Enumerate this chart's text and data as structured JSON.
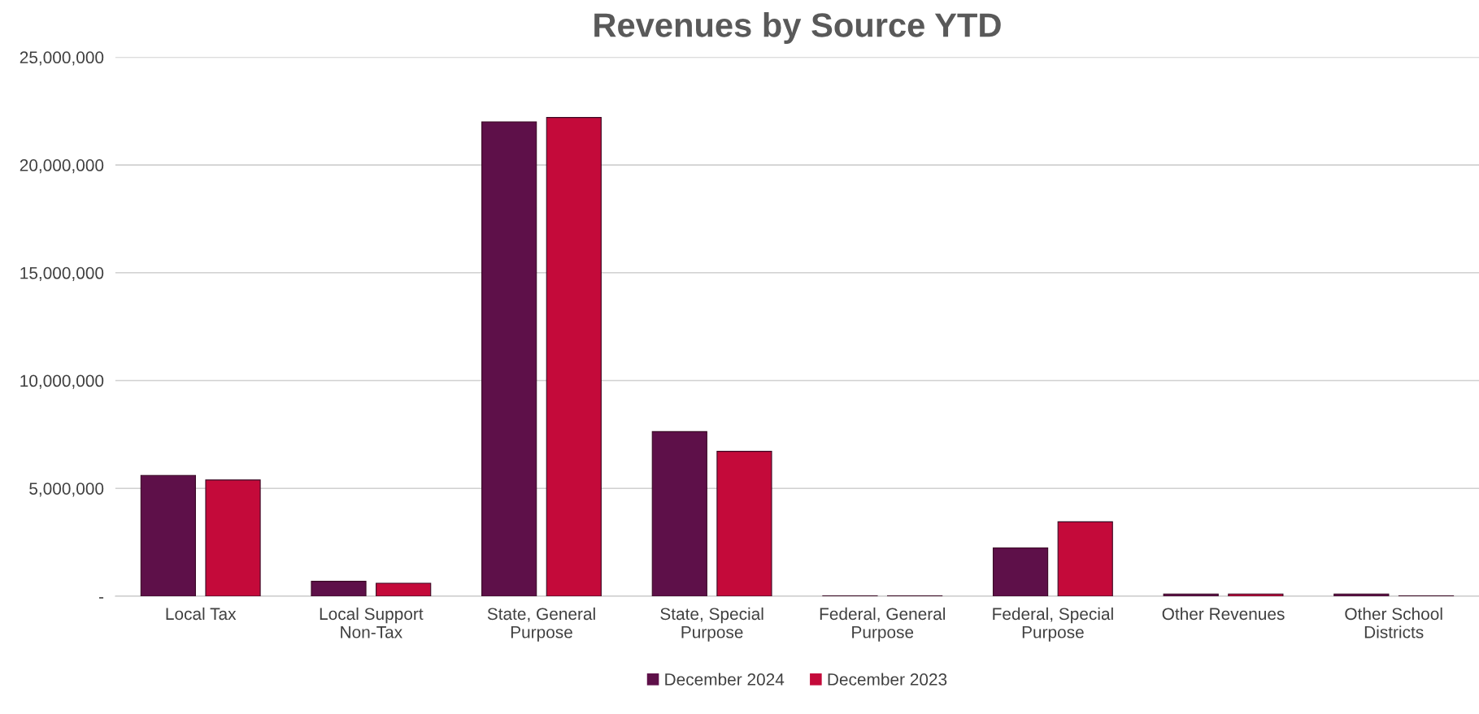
{
  "chart_data": {
    "type": "bar",
    "title": "Revenues by Source YTD",
    "categories": [
      "Local Tax",
      "Local Support\nNon-Tax",
      "State, General\nPurpose",
      "State, Special\nPurpose",
      "Federal, General\nPurpose",
      "Federal, Special\nPurpose",
      "Other Revenues",
      "Other School\nDistricts"
    ],
    "series": [
      {
        "name": "December 2024",
        "color": "#5e1049",
        "values": [
          5600000,
          690000,
          22000000,
          7630000,
          20000,
          2240000,
          100000,
          100000
        ]
      },
      {
        "name": "December 2023",
        "color": "#c40a3a",
        "values": [
          5390000,
          600000,
          22200000,
          6720000,
          20000,
          3450000,
          100000,
          20000
        ]
      }
    ],
    "ylim": [
      0,
      25000000
    ],
    "yticks": [
      {
        "value": 0,
        "label": "-"
      },
      {
        "value": 5000000,
        "label": "5,000,000"
      },
      {
        "value": 10000000,
        "label": "10,000,000"
      },
      {
        "value": 15000000,
        "label": "15,000,000"
      },
      {
        "value": 20000000,
        "label": "20,000,000"
      },
      {
        "value": 25000000,
        "label": "25,000,000"
      }
    ],
    "grid": "y",
    "legend": "bottom"
  }
}
